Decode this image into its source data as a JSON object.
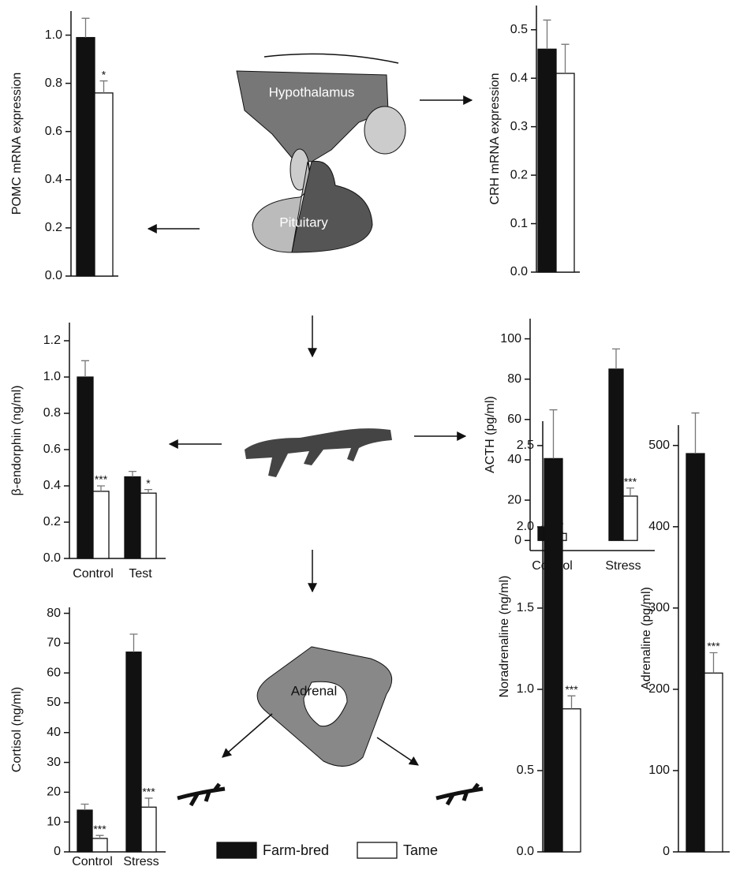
{
  "chart_data": [
    {
      "type": "bar",
      "ylabel": "POMC mRNA expression",
      "categories": [
        null
      ],
      "ylim": [
        0,
        1.1
      ],
      "yticks": [
        {
          "value": 0,
          "label": "0.0"
        },
        0.2,
        0.4,
        0.6,
        0.8,
        {
          "value": 1,
          "label": "1.0"
        }
      ],
      "series": [
        {
          "name": "Farm-bred",
          "color": "#111111",
          "values": [
            0.99
          ],
          "errors": [
            0.08
          ],
          "annotations": [
            null
          ]
        },
        {
          "name": "Tame",
          "color": "#ffffff",
          "values": [
            0.76
          ],
          "errors": [
            0.05
          ],
          "annotations": [
            "*"
          ]
        }
      ]
    },
    {
      "type": "bar",
      "ylabel": "CRH mRNA expression",
      "categories": [
        null
      ],
      "ylim": [
        0,
        0.55
      ],
      "yticks": [
        {
          "value": 0,
          "label": "0.0"
        },
        0.1,
        0.2,
        0.3,
        0.4,
        0.5
      ],
      "series": [
        {
          "name": "Farm-bred",
          "color": "#111111",
          "values": [
            0.46
          ],
          "errors": [
            0.06
          ],
          "annotations": [
            null
          ]
        },
        {
          "name": "Tame",
          "color": "#ffffff",
          "values": [
            0.41
          ],
          "errors": [
            0.06
          ],
          "annotations": [
            null
          ]
        }
      ]
    },
    {
      "type": "bar",
      "ylabel": "β-endorphin (ng/ml)",
      "categories": [
        "Control",
        "Test"
      ],
      "ylim": [
        0,
        1.3
      ],
      "yticks": [
        {
          "value": 0,
          "label": "0.0"
        },
        0.2,
        0.4,
        0.6,
        0.8,
        {
          "value": 1,
          "label": "1.0"
        },
        1.2
      ],
      "series": [
        {
          "name": "Farm-bred",
          "color": "#111111",
          "values": [
            1.0,
            0.45
          ],
          "errors": [
            0.09,
            0.03
          ],
          "annotations": [
            null,
            null
          ]
        },
        {
          "name": "Tame",
          "color": "#ffffff",
          "values": [
            0.37,
            0.36
          ],
          "errors": [
            0.03,
            0.02
          ],
          "annotations": [
            "***",
            "*"
          ]
        }
      ]
    },
    {
      "type": "bar",
      "ylabel": "ACTH (pg/ml)",
      "categories": [
        "Control",
        "Stress"
      ],
      "ylim": [
        -5,
        110
      ],
      "yticks": [
        0,
        20,
        40,
        60,
        80,
        100
      ],
      "series": [
        {
          "name": "Farm-bred",
          "color": "#111111",
          "values": [
            6.5,
            85
          ],
          "errors": [
            0.5,
            10
          ],
          "annotations": [
            null,
            null
          ]
        },
        {
          "name": "Tame",
          "color": "#ffffff",
          "values": [
            3.5,
            22
          ],
          "errors": [
            0.5,
            4
          ],
          "annotations": [
            "**",
            "***"
          ]
        }
      ]
    },
    {
      "type": "bar",
      "ylabel": "Cortisol (ng/ml)",
      "categories": [
        "Control",
        "Stress"
      ],
      "ylim": [
        0,
        82
      ],
      "yticks": [
        0,
        10,
        20,
        30,
        40,
        50,
        60,
        70,
        80
      ],
      "series": [
        {
          "name": "Farm-bred",
          "color": "#111111",
          "values": [
            14,
            67
          ],
          "errors": [
            2,
            6
          ],
          "annotations": [
            null,
            null
          ]
        },
        {
          "name": "Tame",
          "color": "#ffffff",
          "values": [
            4.5,
            15
          ],
          "errors": [
            1,
            3
          ],
          "annotations": [
            "***",
            "***"
          ]
        }
      ]
    },
    {
      "type": "bar",
      "ylabel": "Noradrenaline (ng/ml)",
      "categories": [
        null
      ],
      "ylim": [
        0,
        2.65
      ],
      "yticks": [
        {
          "value": 0,
          "label": "0.0"
        },
        0.5,
        {
          "value": 1,
          "label": "1.0"
        },
        1.5,
        {
          "value": 2,
          "label": "2.0"
        },
        2.5
      ],
      "series": [
        {
          "name": "Farm-bred",
          "color": "#111111",
          "values": [
            2.42
          ],
          "errors": [
            0.3
          ],
          "annotations": [
            null
          ]
        },
        {
          "name": "Tame",
          "color": "#ffffff",
          "values": [
            0.88
          ],
          "errors": [
            0.08
          ],
          "annotations": [
            "***"
          ]
        }
      ]
    },
    {
      "type": "bar",
      "ylabel": "Adrenaline (pg/ml)",
      "categories": [
        null
      ],
      "ylim": [
        0,
        525
      ],
      "yticks": [
        0,
        100,
        200,
        300,
        400,
        500
      ],
      "series": [
        {
          "name": "Farm-bred",
          "color": "#111111",
          "values": [
            490
          ],
          "errors": [
            50
          ],
          "annotations": [
            null
          ]
        },
        {
          "name": "Tame",
          "color": "#ffffff",
          "values": [
            220
          ],
          "errors": [
            25
          ],
          "annotations": [
            "***"
          ]
        }
      ]
    }
  ],
  "diagram": {
    "labels": [
      "Hypothalamus",
      "Pituitary",
      "Adrenal"
    ]
  }
}
